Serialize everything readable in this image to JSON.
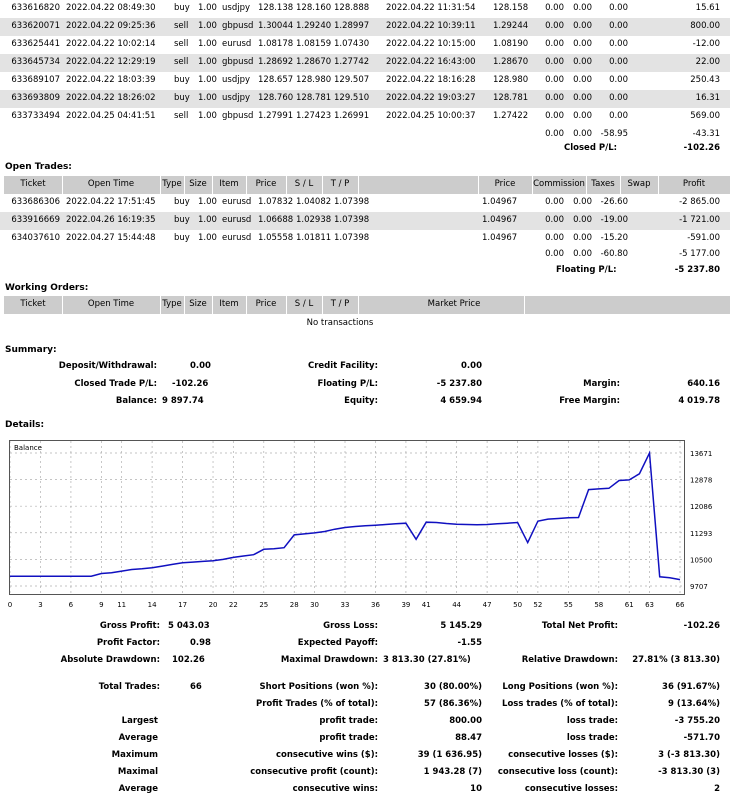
{
  "closed_trades": [
    [
      "633616820",
      "2022.04.22 08:49:30",
      "buy",
      "1.00",
      "usdjpy",
      "128.138",
      "128.160",
      "128.888",
      "2022.04.22 11:31:54",
      "128.158",
      "0.00",
      "0.00",
      "0.00",
      "15.61"
    ],
    [
      "633620071",
      "2022.04.22 09:25:36",
      "sell",
      "1.00",
      "gbpusd",
      "1.30044",
      "1.29240",
      "1.28997",
      "2022.04.22 10:39:11",
      "1.29244",
      "0.00",
      "0.00",
      "0.00",
      "800.00"
    ],
    [
      "633625441",
      "2022.04.22 10:02:14",
      "sell",
      "1.00",
      "eurusd",
      "1.08178",
      "1.08159",
      "1.07430",
      "2022.04.22 10:15:00",
      "1.08190",
      "0.00",
      "0.00",
      "0.00",
      "-12.00"
    ],
    [
      "633645734",
      "2022.04.22 12:29:19",
      "sell",
      "1.00",
      "gbpusd",
      "1.28692",
      "1.28670",
      "1.27742",
      "2022.04.22 16:43:00",
      "1.28670",
      "0.00",
      "0.00",
      "0.00",
      "22.00"
    ],
    [
      "633689107",
      "2022.04.22 18:03:39",
      "buy",
      "1.00",
      "usdjpy",
      "128.657",
      "128.980",
      "129.507",
      "2022.04.22 18:16:28",
      "128.980",
      "0.00",
      "0.00",
      "0.00",
      "250.43"
    ],
    [
      "633693809",
      "2022.04.22 18:26:02",
      "buy",
      "1.00",
      "usdjpy",
      "128.760",
      "128.781",
      "129.510",
      "2022.04.22 19:03:27",
      "128.781",
      "0.00",
      "0.00",
      "0.00",
      "16.31"
    ],
    [
      "633733494",
      "2022.04.25 04:41:51",
      "sell",
      "1.00",
      "gbpusd",
      "1.27991",
      "1.27423",
      "1.26991",
      "2022.04.25 10:00:37",
      "1.27422",
      "0.00",
      "0.00",
      "0.00",
      "569.00"
    ]
  ],
  "closed_totals": [
    "0.00",
    "0.00",
    "-58.95",
    "-43.31"
  ],
  "closed_pl_label": "Closed P/L:",
  "closed_pl_value": "-102.26",
  "open_trades_title": "Open Trades:",
  "open_headers": [
    "Ticket",
    "Open Time",
    "Type",
    "Size",
    "Item",
    "Price",
    "S / L",
    "T / P",
    "Price",
    "Commission",
    "Taxes",
    "Swap",
    "Profit"
  ],
  "open_trades": [
    [
      "633686306",
      "2022.04.22 17:51:45",
      "buy",
      "1.00",
      "eurusd",
      "1.07832",
      "1.04082",
      "1.07398",
      "1.04967",
      "0.00",
      "0.00",
      "-26.60",
      "-2 865.00"
    ],
    [
      "633916669",
      "2022.04.26 16:19:35",
      "buy",
      "1.00",
      "eurusd",
      "1.06688",
      "1.02938",
      "1.07398",
      "1.04967",
      "0.00",
      "0.00",
      "-19.00",
      "-1 721.00"
    ],
    [
      "634037610",
      "2022.04.27 15:44:48",
      "buy",
      "1.00",
      "eurusd",
      "1.05558",
      "1.01811",
      "1.07398",
      "1.04967",
      "0.00",
      "0.00",
      "-15.20",
      "-591.00"
    ]
  ],
  "open_totals": [
    "0.00",
    "0.00",
    "-60.80",
    "-5 177.00"
  ],
  "floating_pl_label": "Floating P/L:",
  "floating_pl_value": "-5 237.80",
  "working_title": "Working Orders:",
  "working_headers": [
    "Ticket",
    "Open Time",
    "Type",
    "Size",
    "Item",
    "Price",
    "S / L",
    "T / P",
    "Market Price"
  ],
  "no_transactions": "No transactions",
  "summary_title": "Summary:",
  "summary": {
    "deposit_label": "Deposit/Withdrawal:",
    "deposit": "0.00",
    "credit_label": "Credit Facility:",
    "credit": "0.00",
    "closed_label": "Closed Trade P/L:",
    "closed": "-102.26",
    "floating_label": "Floating P/L:",
    "floating": "-5 237.80",
    "margin_label": "Margin:",
    "margin": "640.16",
    "balance_label": "Balance:",
    "balance": "9 897.74",
    "equity_label": "Equity:",
    "equity": "4 659.94",
    "free_margin_label": "Free Margin:",
    "free_margin": "4 019.78"
  },
  "details_title": "Details:",
  "chart_data": {
    "type": "line",
    "legend": "Balance",
    "y_ticks": [
      13671,
      12878,
      12086,
      11293,
      10500,
      9707
    ],
    "x_ticks": [
      0,
      3,
      6,
      9,
      11,
      14,
      17,
      20,
      22,
      25,
      28,
      30,
      33,
      36,
      39,
      41,
      44,
      47,
      50,
      52,
      55,
      58,
      61,
      63,
      66
    ],
    "ylim": [
      9707,
      13671
    ],
    "xlim": [
      0,
      66
    ],
    "grid": true,
    "series": [
      {
        "values": [
          [
            0,
            10000
          ],
          [
            3,
            10000
          ],
          [
            6,
            10000
          ],
          [
            8,
            10000
          ],
          [
            9,
            10080
          ],
          [
            10,
            10100
          ],
          [
            11,
            10150
          ],
          [
            12,
            10200
          ],
          [
            13,
            10220
          ],
          [
            14,
            10250
          ],
          [
            15,
            10300
          ],
          [
            16,
            10350
          ],
          [
            17,
            10400
          ],
          [
            18,
            10420
          ],
          [
            19,
            10440
          ],
          [
            20,
            10460
          ],
          [
            21,
            10500
          ],
          [
            22,
            10560
          ],
          [
            23,
            10600
          ],
          [
            24,
            10640
          ],
          [
            25,
            10800
          ],
          [
            26,
            10820
          ],
          [
            27,
            10850
          ],
          [
            28,
            11230
          ],
          [
            29,
            11260
          ],
          [
            30,
            11290
          ],
          [
            31,
            11330
          ],
          [
            32,
            11400
          ],
          [
            33,
            11450
          ],
          [
            34,
            11480
          ],
          [
            35,
            11500
          ],
          [
            36,
            11520
          ],
          [
            37,
            11540
          ],
          [
            38,
            11560
          ],
          [
            39,
            11580
          ],
          [
            40,
            11100
          ],
          [
            41,
            11610
          ],
          [
            42,
            11600
          ],
          [
            43,
            11570
          ],
          [
            44,
            11550
          ],
          [
            45,
            11540
          ],
          [
            46,
            11530
          ],
          [
            47,
            11540
          ],
          [
            48,
            11560
          ],
          [
            49,
            11580
          ],
          [
            50,
            11600
          ],
          [
            51,
            11000
          ],
          [
            52,
            11640
          ],
          [
            53,
            11700
          ],
          [
            54,
            11720
          ],
          [
            55,
            11740
          ],
          [
            56,
            11750
          ],
          [
            57,
            12580
          ],
          [
            58,
            12600
          ],
          [
            59,
            12620
          ],
          [
            60,
            12850
          ],
          [
            61,
            12870
          ],
          [
            62,
            13050
          ],
          [
            63,
            13671
          ],
          [
            64,
            9980
          ],
          [
            65,
            9950
          ],
          [
            66,
            9898
          ]
        ]
      }
    ]
  },
  "stats": {
    "gross_profit_label": "Gross Profit:",
    "gross_profit": "5 043.03",
    "gross_loss_label": "Gross Loss:",
    "gross_loss": "5 145.29",
    "total_net_label": "Total Net Profit:",
    "total_net": "-102.26",
    "profit_factor_label": "Profit Factor:",
    "profit_factor": "0.98",
    "expected_payoff_label": "Expected Payoff:",
    "expected_payoff": "-1.55",
    "abs_dd_label": "Absolute Drawdown:",
    "abs_dd": "102.26",
    "max_dd_label": "Maximal Drawdown:",
    "max_dd": "3 813.30 (27.81%)",
    "rel_dd_label": "Relative Drawdown:",
    "rel_dd": "27.81% (3 813.30)",
    "total_trades_label": "Total Trades:",
    "total_trades": "66",
    "short_label": "Short Positions (won %):",
    "short": "30 (80.00%)",
    "long_label": "Long Positions (won %):",
    "long": "36 (91.67%)",
    "profit_trades_label": "Profit Trades (% of total):",
    "profit_trades": "57 (86.36%)",
    "loss_trades_label": "Loss trades (% of total):",
    "loss_trades": "9 (13.64%)",
    "largest": "Largest",
    "largest_profit_label": "profit trade:",
    "largest_profit": "800.00",
    "largest_loss_label": "loss trade:",
    "largest_loss": "-3 755.20",
    "average": "Average",
    "avg_profit_label": "profit trade:",
    "avg_profit": "88.47",
    "avg_loss_label": "loss trade:",
    "avg_loss": "-571.70",
    "maximum": "Maximum",
    "max_cons_wins_label": "consecutive wins ($):",
    "max_cons_wins": "39 (1 636.95)",
    "max_cons_losses_label": "consecutive losses ($):",
    "max_cons_losses": "3 (-3 813.30)",
    "maximal": "Maximal",
    "maximal_profit_label": "consecutive profit (count):",
    "maximal_profit": "1 943.28 (7)",
    "maximal_loss_label": "consecutive loss (count):",
    "maximal_loss": "-3 813.30 (3)",
    "average2": "Average",
    "avg_cons_wins_label": "consecutive wins:",
    "avg_cons_wins": "10",
    "avg_cons_losses_label": "consecutive losses:",
    "avg_cons_losses": "2"
  }
}
